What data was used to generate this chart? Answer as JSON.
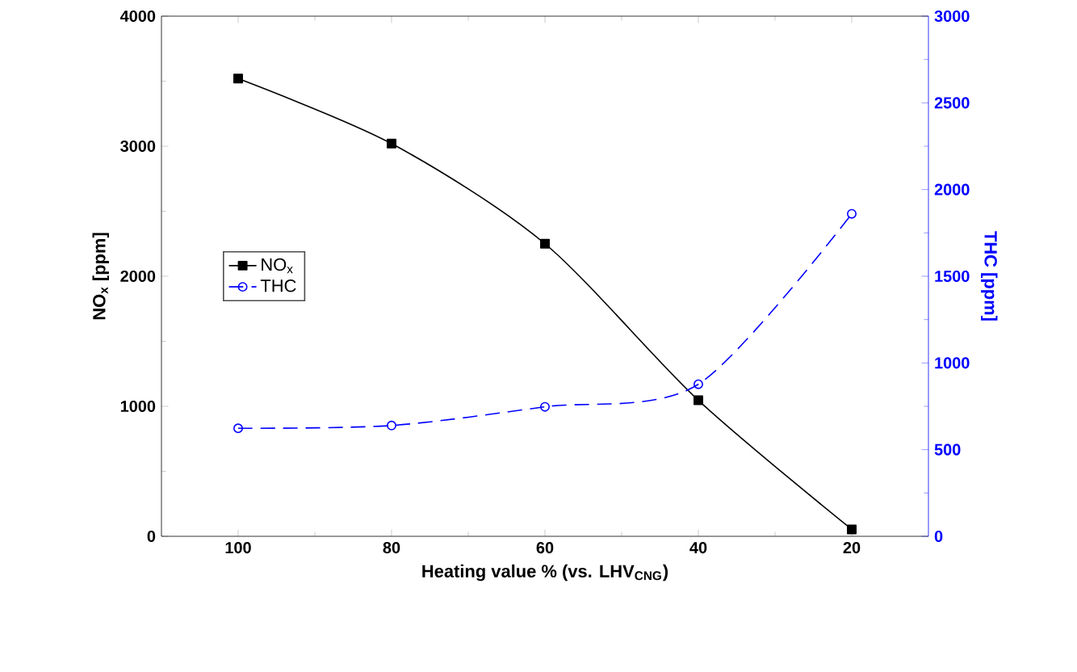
{
  "chart_data": {
    "type": "line",
    "xlabel": "Heating value % (vs.  LHV$_{CNG}$)",
    "ylabel": "NO$_{x}$ [ppm]",
    "y2label": "THC [ppm]",
    "x": [
      100,
      80,
      60,
      40,
      20
    ],
    "xlim": [
      110,
      10
    ],
    "xticks": [
      100,
      80,
      60,
      40,
      20
    ],
    "ylim": [
      0,
      4000
    ],
    "yticks": [
      0,
      1000,
      2000,
      3000,
      4000
    ],
    "y2lim": [
      0,
      3000
    ],
    "y2ticks": [
      0,
      500,
      1000,
      1500,
      2000,
      2500,
      3000
    ],
    "series": [
      {
        "name": "NO$_{x}$",
        "color": "#000000",
        "values": [
          3520,
          3020,
          2250,
          1046,
          53
        ],
        "marker": "square",
        "line_style": "solid"
      },
      {
        "name": "THC",
        "color": "#0000ff",
        "values": [
          623,
          639,
          747,
          877,
          1860
        ],
        "marker": "circle",
        "line_style": "dashed",
        "axis": "y2"
      }
    ],
    "legend": "left"
  }
}
